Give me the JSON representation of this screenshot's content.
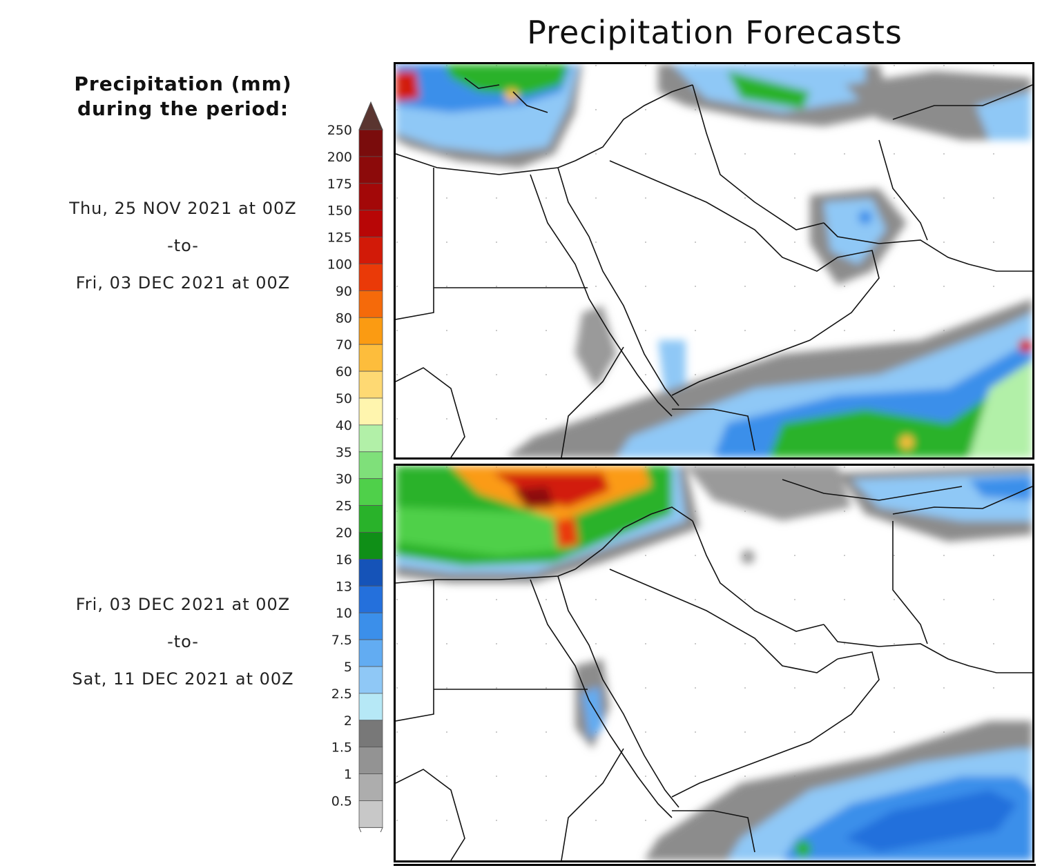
{
  "title": "Precipitation Forecasts",
  "legend": {
    "title_line1": "Precipitation (mm)",
    "title_line2": "during the period:",
    "units": "mm",
    "levels": [
      "250",
      "200",
      "175",
      "150",
      "125",
      "100",
      "90",
      "80",
      "70",
      "60",
      "50",
      "40",
      "35",
      "30",
      "25",
      "20",
      "16",
      "13",
      "10",
      "7.5",
      "5",
      "2.5",
      "2",
      "1.5",
      "1",
      "0.5"
    ],
    "colors": [
      "#7a0c0c",
      "#8c0a0a",
      "#a30808",
      "#b80606",
      "#d21a08",
      "#ea3a08",
      "#f56a0a",
      "#fb9b12",
      "#fdbd3c",
      "#fed973",
      "#fff5ae",
      "#b2f0a8",
      "#7fe07a",
      "#4fd04a",
      "#29b22a",
      "#0f8f17",
      "#1553b8",
      "#2470dc",
      "#3b8fea",
      "#62acf2",
      "#8fc8f6",
      "#b6e8f6",
      "#787878",
      "#939393",
      "#adadad",
      "#c8c8c8"
    ],
    "top_arrow_color": "#5a3530",
    "bottom_arrow_color": "#ffffff"
  },
  "periods": [
    {
      "start": "Thu, 25 NOV 2021 at 00Z",
      "sep": "-to-",
      "end": "Fri, 03 DEC 2021 at 00Z"
    },
    {
      "start": "Fri, 03 DEC 2021 at 00Z",
      "sep": "-to-",
      "end": "Sat, 11 DEC 2021 at 00Z"
    }
  ]
}
